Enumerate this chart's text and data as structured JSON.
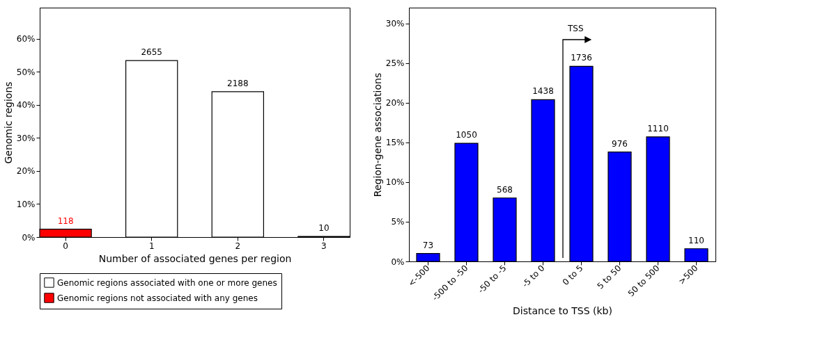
{
  "chart_data": [
    {
      "type": "bar",
      "categories": [
        "0",
        "1",
        "2",
        "3"
      ],
      "xlabel": "Number of associated genes per region",
      "ylabel": "Genomic regions",
      "ylim": [
        0,
        69.4
      ],
      "yticks": [
        {
          "value": 0,
          "label": "0%"
        },
        {
          "value": 10,
          "label": "10%"
        },
        {
          "value": 20,
          "label": "20%"
        },
        {
          "value": 30,
          "label": "30%"
        },
        {
          "value": 40,
          "label": "40%"
        },
        {
          "value": 50,
          "label": "50%"
        },
        {
          "value": 60,
          "label": "60%"
        }
      ],
      "grid": false,
      "legend": "bottom",
      "series": [
        {
          "name": "Genomic regions associated with one or more genes",
          "color": "#ffffff",
          "values": [
            null,
            53.4,
            44.0,
            0.2
          ]
        },
        {
          "name": "Genomic regions not associated with any genes",
          "color": "#ff0000",
          "values": [
            2.4,
            null,
            null,
            null
          ]
        }
      ],
      "annotations": [
        {
          "text": "118",
          "x": "0",
          "y": 2.4
        },
        {
          "text": "2655",
          "x": "1",
          "y": 53.4
        },
        {
          "text": "2188",
          "x": "2",
          "y": 44.0
        },
        {
          "text": "10",
          "x": "3",
          "y": 0.2
        }
      ]
    },
    {
      "type": "bar",
      "categories": [
        "<-500",
        "-500 to -50",
        "-50 to -5",
        "-5 to 0",
        "0 to 5",
        "5 to 50",
        "50 to 500",
        ">500"
      ],
      "xlabel": "Distance to TSS (kb)",
      "ylabel": "Region-gene associations",
      "ylim": [
        0,
        32
      ],
      "yticks": [
        {
          "value": 0,
          "label": "0%"
        },
        {
          "value": 5,
          "label": "5%"
        },
        {
          "value": 10,
          "label": "10%"
        },
        {
          "value": 15,
          "label": "15%"
        },
        {
          "value": 20,
          "label": "20%"
        },
        {
          "value": 25,
          "label": "25%"
        },
        {
          "value": 30,
          "label": "30%"
        }
      ],
      "grid": false,
      "color": "#0000ff",
      "values": [
        1.0,
        14.9,
        8.0,
        20.4,
        24.6,
        13.8,
        15.7,
        1.6
      ],
      "annotations": [
        {
          "text": "73",
          "x": "<-500",
          "y": 1.0
        },
        {
          "text": "1050",
          "x": "-500 to -50",
          "y": 14.9
        },
        {
          "text": "568",
          "x": "-50 to -5",
          "y": 8.0
        },
        {
          "text": "1438",
          "x": "-5 to 0",
          "y": 20.4
        },
        {
          "text": "1736",
          "x": "0 to 5",
          "y": 24.6
        },
        {
          "text": "976",
          "x": "5 to 50",
          "y": 13.8
        },
        {
          "text": "1110",
          "x": "50 to 500",
          "y": 15.7
        },
        {
          "text": "110",
          "x": ">500",
          "y": 1.6
        },
        "TSS"
      ]
    }
  ]
}
